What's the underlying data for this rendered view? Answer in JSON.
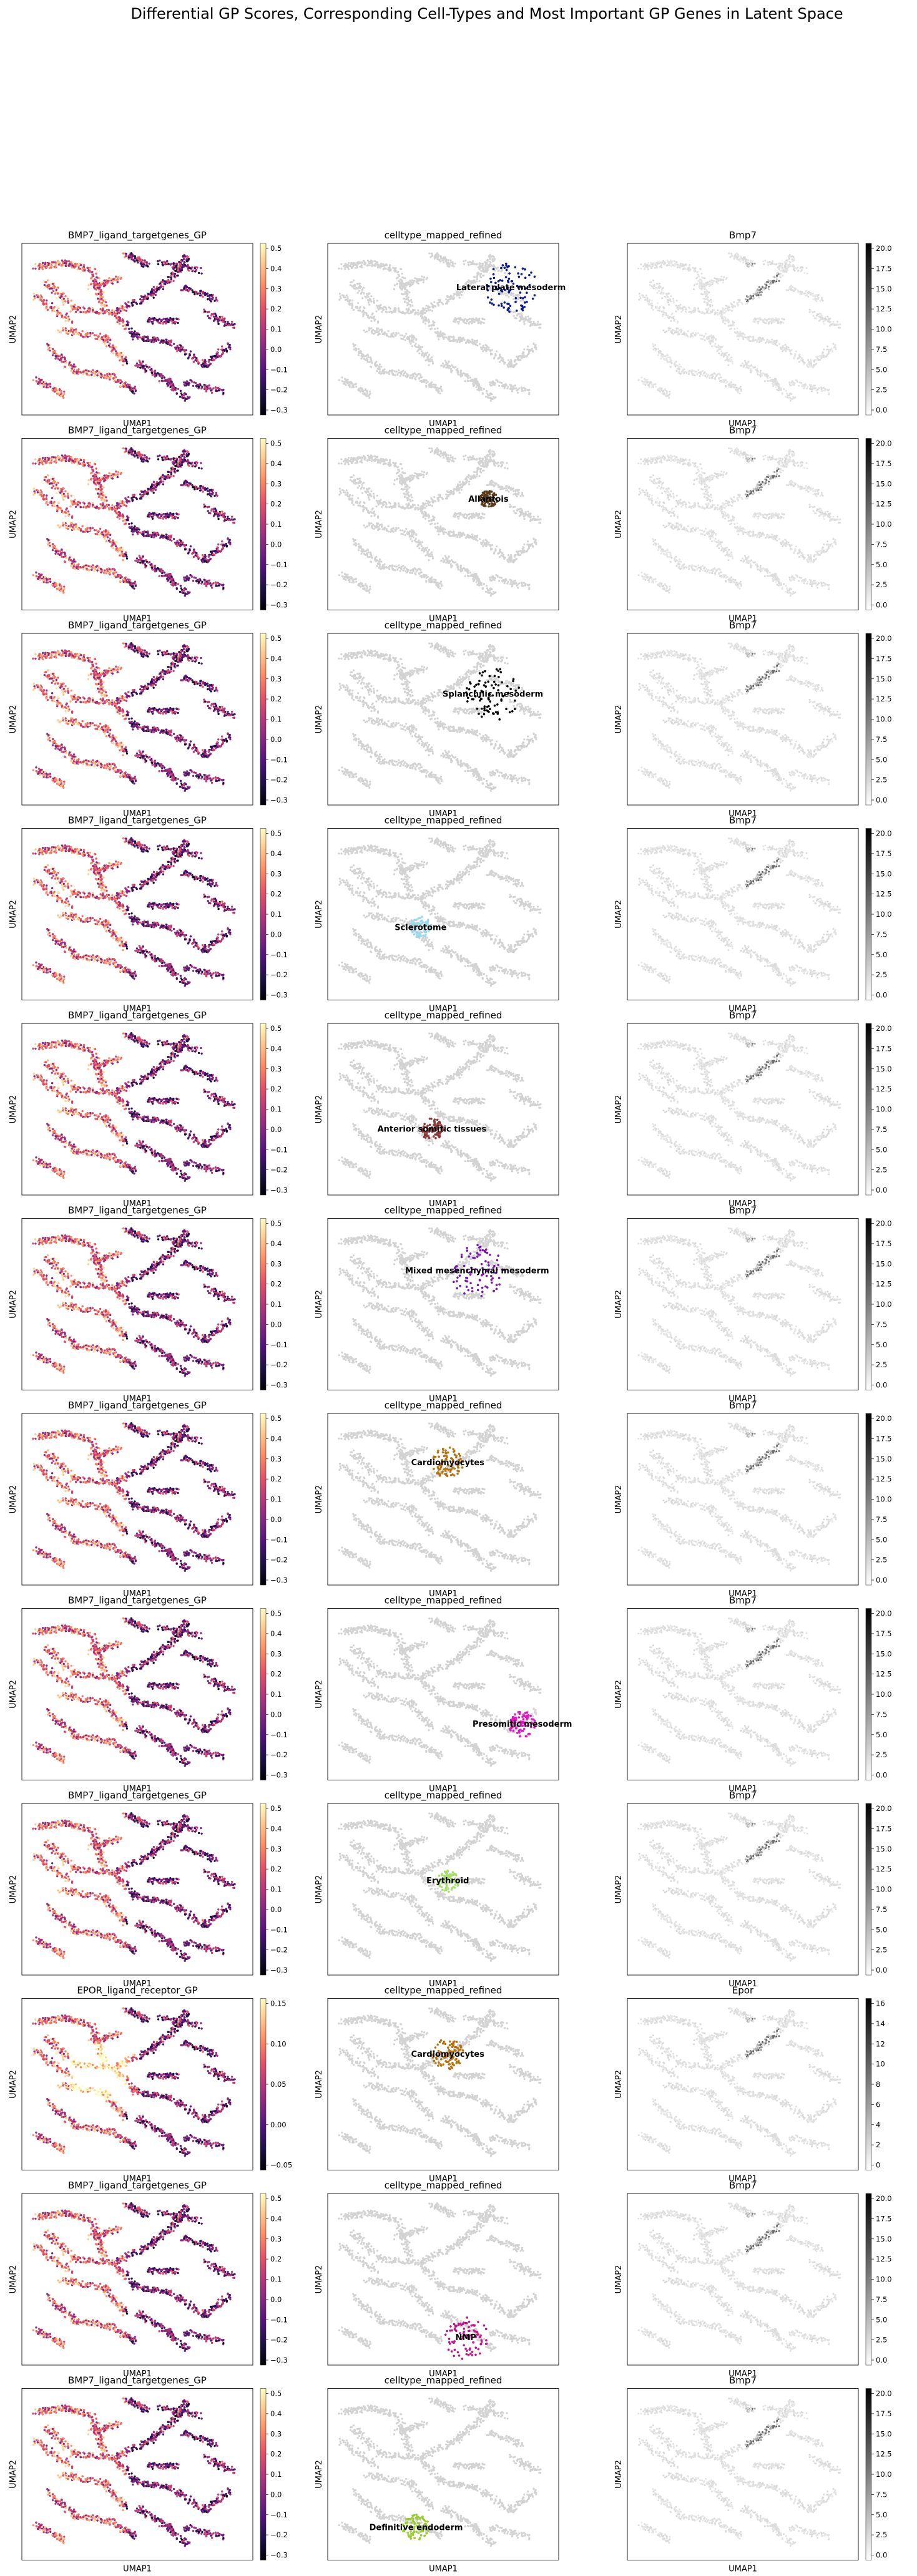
{
  "title": "Differential GP Scores, Corresponding Cell-Types and Most Important GP Genes in Latent Space",
  "chart_data": {
    "type": "scatter",
    "xlabel": "UMAP1",
    "ylabel": "UMAP2",
    "rows": [
      {
        "gp": {
          "title": "BMP7_ligand_targetgenes_GP",
          "colormap": "magma",
          "ticks": [
            "0.5",
            "0.4",
            "0.3",
            "0.2",
            "0.1",
            "0.0",
            "−0.1",
            "−0.2",
            "−0.3"
          ],
          "range": [
            -0.33,
            0.53
          ]
        },
        "cell": {
          "title": "celltype_mapped_refined",
          "label": "Lateral plate mesoderm",
          "color": "#0a1a8c"
        },
        "gene": {
          "title": "Bmp7",
          "colormap": "gray_r",
          "ticks": [
            "20.0",
            "17.5",
            "15.0",
            "12.5",
            "10.0",
            "7.5",
            "5.0",
            "2.5",
            "0.0"
          ],
          "range": [
            0,
            21.5
          ]
        }
      },
      {
        "gp": {
          "title": "BMP7_ligand_targetgenes_GP",
          "colormap": "magma",
          "ticks": [
            "0.5",
            "0.4",
            "0.3",
            "0.2",
            "0.1",
            "0.0",
            "−0.1",
            "−0.2",
            "−0.3"
          ],
          "range": [
            -0.33,
            0.53
          ]
        },
        "cell": {
          "title": "celltype_mapped_refined",
          "label": "Allantois",
          "color": "#5a3a1a"
        },
        "gene": {
          "title": "Bmp7",
          "colormap": "gray_r",
          "ticks": [
            "20.0",
            "17.5",
            "15.0",
            "12.5",
            "10.0",
            "7.5",
            "5.0",
            "2.5",
            "0.0"
          ],
          "range": [
            0,
            21.5
          ]
        }
      },
      {
        "gp": {
          "title": "BMP7_ligand_targetgenes_GP",
          "colormap": "magma",
          "ticks": [
            "0.5",
            "0.4",
            "0.3",
            "0.2",
            "0.1",
            "0.0",
            "−0.1",
            "−0.2",
            "−0.3"
          ],
          "range": [
            -0.33,
            0.53
          ]
        },
        "cell": {
          "title": "celltype_mapped_refined",
          "label": "Splanchnic mesoderm",
          "color": "#000000"
        },
        "gene": {
          "title": "Bmp7",
          "colormap": "gray_r",
          "ticks": [
            "20.0",
            "17.5",
            "15.0",
            "12.5",
            "10.0",
            "7.5",
            "5.0",
            "2.5",
            "0.0"
          ],
          "range": [
            0,
            21.5
          ]
        }
      },
      {
        "gp": {
          "title": "BMP7_ligand_targetgenes_GP",
          "colormap": "magma",
          "ticks": [
            "0.5",
            "0.4",
            "0.3",
            "0.2",
            "0.1",
            "0.0",
            "−0.1",
            "−0.2",
            "−0.3"
          ],
          "range": [
            -0.33,
            0.53
          ]
        },
        "cell": {
          "title": "celltype_mapped_refined",
          "label": "Sclerotome",
          "color": "#9fd8e8"
        },
        "gene": {
          "title": "Bmp7",
          "colormap": "gray_r",
          "ticks": [
            "20.0",
            "17.5",
            "15.0",
            "12.5",
            "10.0",
            "7.5",
            "5.0",
            "2.5",
            "0.0"
          ],
          "range": [
            0,
            21.5
          ]
        }
      },
      {
        "gp": {
          "title": "BMP7_ligand_targetgenes_GP",
          "colormap": "magma",
          "ticks": [
            "0.5",
            "0.4",
            "0.3",
            "0.2",
            "0.1",
            "0.0",
            "−0.1",
            "−0.2",
            "−0.3"
          ],
          "range": [
            -0.33,
            0.53
          ]
        },
        "cell": {
          "title": "celltype_mapped_refined",
          "label": "Anterior somitic tissues",
          "color": "#8b3a3a"
        },
        "gene": {
          "title": "Bmp7",
          "colormap": "gray_r",
          "ticks": [
            "20.0",
            "17.5",
            "15.0",
            "12.5",
            "10.0",
            "7.5",
            "5.0",
            "2.5",
            "0.0"
          ],
          "range": [
            0,
            21.5
          ]
        }
      },
      {
        "gp": {
          "title": "BMP7_ligand_targetgenes_GP",
          "colormap": "magma",
          "ticks": [
            "0.5",
            "0.4",
            "0.3",
            "0.2",
            "0.1",
            "0.0",
            "−0.1",
            "−0.2",
            "−0.3"
          ],
          "range": [
            -0.33,
            0.53
          ]
        },
        "cell": {
          "title": "celltype_mapped_refined",
          "label": "Mixed mesenchymal mesoderm",
          "color": "#7a14b4"
        },
        "gene": {
          "title": "Bmp7",
          "colormap": "gray_r",
          "ticks": [
            "20.0",
            "17.5",
            "15.0",
            "12.5",
            "10.0",
            "7.5",
            "5.0",
            "2.5",
            "0.0"
          ],
          "range": [
            0,
            21.5
          ]
        }
      },
      {
        "gp": {
          "title": "BMP7_ligand_targetgenes_GP",
          "colormap": "magma",
          "ticks": [
            "0.5",
            "0.4",
            "0.3",
            "0.2",
            "0.1",
            "0.0",
            "−0.1",
            "−0.2",
            "−0.3"
          ],
          "range": [
            -0.33,
            0.53
          ]
        },
        "cell": {
          "title": "celltype_mapped_refined",
          "label": "Cardiomyocytes",
          "color": "#b5730f"
        },
        "gene": {
          "title": "Bmp7",
          "colormap": "gray_r",
          "ticks": [
            "20.0",
            "17.5",
            "15.0",
            "12.5",
            "10.0",
            "7.5",
            "5.0",
            "2.5",
            "0.0"
          ],
          "range": [
            0,
            21.5
          ]
        }
      },
      {
        "gp": {
          "title": "BMP7_ligand_targetgenes_GP",
          "colormap": "magma",
          "ticks": [
            "0.5",
            "0.4",
            "0.3",
            "0.2",
            "0.1",
            "0.0",
            "−0.1",
            "−0.2",
            "−0.3"
          ],
          "range": [
            -0.33,
            0.53
          ]
        },
        "cell": {
          "title": "celltype_mapped_refined",
          "label": "Presomitic mesoderm",
          "color": "#e016c4"
        },
        "gene": {
          "title": "Bmp7",
          "colormap": "gray_r",
          "ticks": [
            "20.0",
            "17.5",
            "15.0",
            "12.5",
            "10.0",
            "7.5",
            "5.0",
            "2.5",
            "0.0"
          ],
          "range": [
            0,
            21.5
          ]
        }
      },
      {
        "gp": {
          "title": "BMP7_ligand_targetgenes_GP",
          "colormap": "magma",
          "ticks": [
            "0.5",
            "0.4",
            "0.3",
            "0.2",
            "0.1",
            "0.0",
            "−0.1",
            "−0.2",
            "−0.3"
          ],
          "range": [
            -0.33,
            0.53
          ]
        },
        "cell": {
          "title": "celltype_mapped_refined",
          "label": "Erythroid",
          "color": "#a6e06a"
        },
        "gene": {
          "title": "Bmp7",
          "colormap": "gray_r",
          "ticks": [
            "20.0",
            "17.5",
            "15.0",
            "12.5",
            "10.0",
            "7.5",
            "5.0",
            "2.5",
            "0.0"
          ],
          "range": [
            0,
            21.5
          ]
        }
      },
      {
        "gp": {
          "title": "EPOR_ligand_receptor_GP",
          "colormap": "magma",
          "ticks": [
            "0.15",
            "0.10",
            "0.05",
            "0.00",
            "−0.05"
          ],
          "range": [
            -0.08,
            0.18
          ]
        },
        "cell": {
          "title": "celltype_mapped_refined",
          "label": "Cardiomyocytes",
          "color": "#b5730f"
        },
        "gene": {
          "title": "Epor",
          "colormap": "gray_r",
          "ticks": [
            "16",
            "14",
            "12",
            "10",
            "8",
            "6",
            "4",
            "2",
            "0"
          ],
          "range": [
            0,
            16
          ]
        }
      },
      {
        "gp": {
          "title": "BMP7_ligand_targetgenes_GP",
          "colormap": "magma",
          "ticks": [
            "0.5",
            "0.4",
            "0.3",
            "0.2",
            "0.1",
            "0.0",
            "−0.1",
            "−0.2",
            "−0.3"
          ],
          "range": [
            -0.33,
            0.53
          ]
        },
        "cell": {
          "title": "celltype_mapped_refined",
          "label": "NMP",
          "color": "#c0148c"
        },
        "gene": {
          "title": "Bmp7",
          "colormap": "gray_r",
          "ticks": [
            "20.0",
            "17.5",
            "15.0",
            "12.5",
            "10.0",
            "7.5",
            "5.0",
            "2.5",
            "0.0"
          ],
          "range": [
            0,
            21.5
          ]
        }
      },
      {
        "gp": {
          "title": "BMP7_ligand_targetgenes_GP",
          "colormap": "magma",
          "ticks": [
            "0.5",
            "0.4",
            "0.3",
            "0.2",
            "0.1",
            "0.0",
            "−0.1",
            "−0.2",
            "−0.3"
          ],
          "range": [
            -0.33,
            0.53
          ]
        },
        "cell": {
          "title": "celltype_mapped_refined",
          "label": "Definitive endoderm",
          "color": "#9acd32"
        },
        "gene": {
          "title": "Bmp7",
          "colormap": "gray_r",
          "ticks": [
            "20.0",
            "17.5",
            "15.0",
            "12.5",
            "10.0",
            "7.5",
            "5.0",
            "2.5",
            "0.0"
          ],
          "range": [
            0,
            21.5
          ]
        }
      }
    ]
  }
}
